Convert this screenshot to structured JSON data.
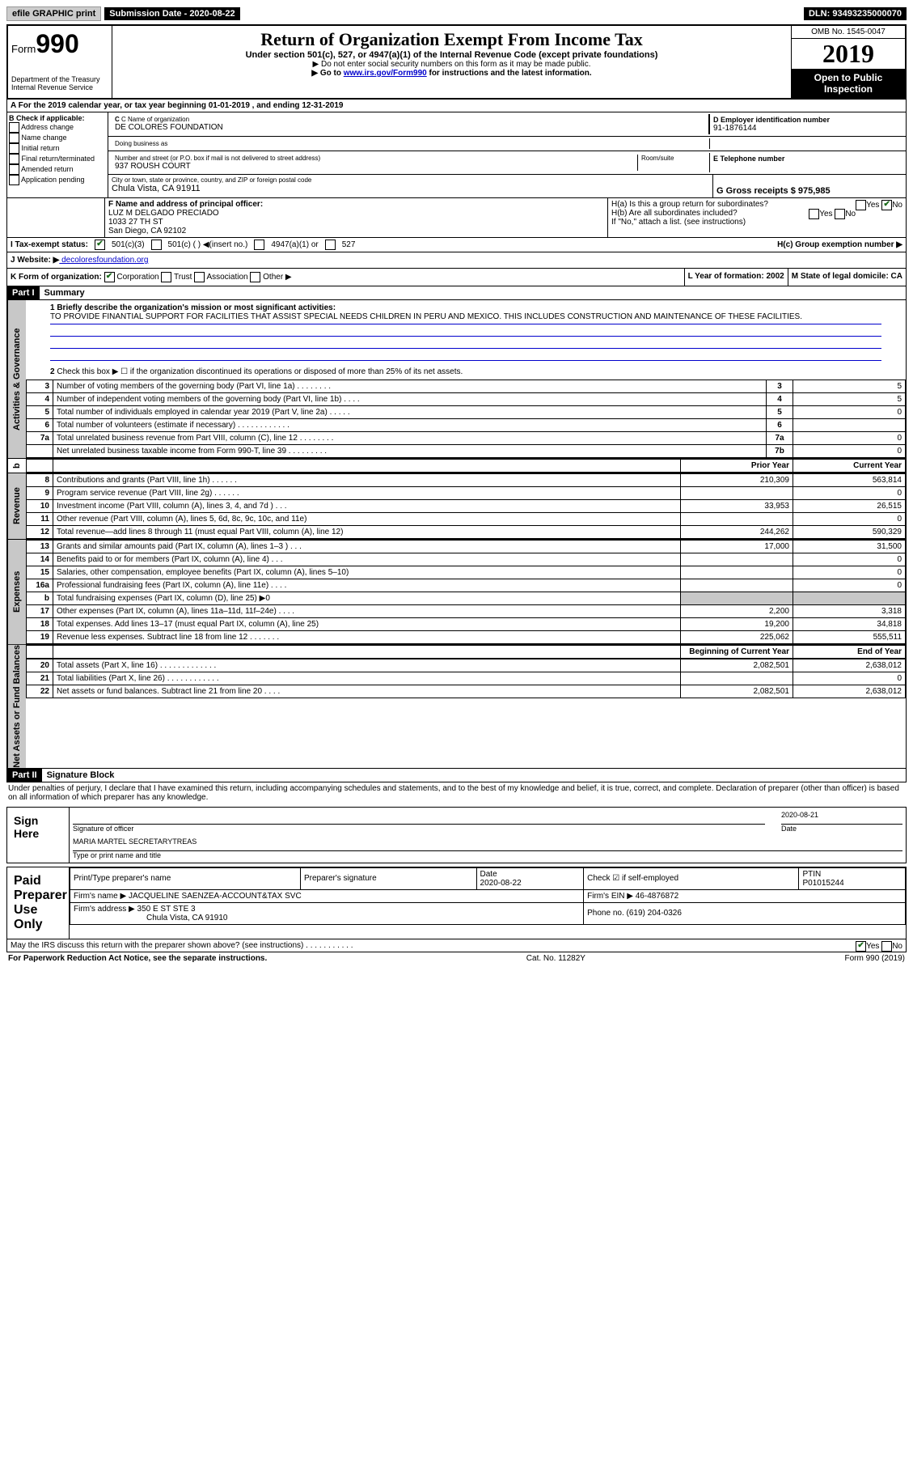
{
  "topbar": {
    "efile": "efile GRAPHIC print",
    "sub_label": "Submission Date - 2020-08-22",
    "dln": "DLN: 93493235000070"
  },
  "header": {
    "form_word": "Form",
    "form_num": "990",
    "dept": "Department of the Treasury\nInternal Revenue Service",
    "title": "Return of Organization Exempt From Income Tax",
    "sub": "Under section 501(c), 527, or 4947(a)(1) of the Internal Revenue Code (except private foundations)",
    "note1": "▶ Do not enter social security numbers on this form as it may be made public.",
    "note2_pre": "▶ Go to ",
    "note2_link": "www.irs.gov/Form990",
    "note2_post": " for instructions and the latest information.",
    "omb": "OMB No. 1545-0047",
    "year": "2019",
    "open": "Open to Public Inspection"
  },
  "row_a": "A For the 2019 calendar year, or tax year beginning 01-01-2019   , and ending 12-31-2019",
  "b": {
    "title": "B Check if applicable:",
    "opts": [
      "Address change",
      "Name change",
      "Initial return",
      "Final return/terminated",
      "Amended return",
      "Application pending"
    ]
  },
  "c": {
    "name_label": "C Name of organization",
    "name": "DE COLORES FOUNDATION",
    "dba": "Doing business as",
    "addr_label": "Number and street (or P.O. box if mail is not delivered to street address)",
    "room": "Room/suite",
    "addr": "937 ROUSH COURT",
    "city_label": "City or town, state or province, country, and ZIP or foreign postal code",
    "city": "Chula Vista, CA  91911"
  },
  "d": {
    "label": "D Employer identification number",
    "val": "91-1876144"
  },
  "e": {
    "label": "E Telephone number"
  },
  "g": {
    "label": "G Gross receipts $ 975,985"
  },
  "f": {
    "label": "F  Name and address of principal officer:",
    "name": "LUZ M DELGADO PRECIADO",
    "addr": "1033 27 TH ST",
    "city": "San Diego, CA  92102"
  },
  "h": {
    "a": "H(a)  Is this a group return for subordinates?",
    "b": "H(b)  Are all subordinates included?",
    "b_note": "If \"No,\" attach a list. (see instructions)",
    "c": "H(c)  Group exemption number ▶"
  },
  "i": {
    "label": "I  Tax-exempt status:",
    "opts": [
      "501(c)(3)",
      "501(c) (  ) ◀(insert no.)",
      "4947(a)(1) or",
      "527"
    ]
  },
  "j": {
    "label": "J  Website: ▶",
    "val": " decoloresfoundation.org"
  },
  "k": {
    "label": "K Form of organization:",
    "corp": "Corporation",
    "trust": "Trust",
    "assoc": "Association",
    "other": "Other ▶"
  },
  "l": {
    "label": "L Year of formation: 2002"
  },
  "m": {
    "label": "M State of legal domicile: CA"
  },
  "part1": {
    "hdr": "Part I",
    "title": "Summary",
    "q1": "1  Briefly describe the organization's mission or most significant activities:",
    "mission": "TO PROVIDE FINANTIAL SUPPORT FOR FACILITIES THAT ASSIST SPECIAL NEEDS CHILDREN IN PERU AND MEXICO. THIS INCLUDES CONSTRUCTION AND MAINTENANCE OF THESE FACILITIES.",
    "q2": "Check this box ▶ ☐  if the organization discontinued its operations or disposed of more than 25% of its net assets."
  },
  "sides": {
    "gov": "Activities & Governance",
    "rev": "Revenue",
    "exp": "Expenses",
    "net": "Net Assets or Fund Balances"
  },
  "gov_rows": [
    {
      "n": "3",
      "d": "Number of voting members of the governing body (Part VI, line 1a)  .   .   .   .   .   .   .   .",
      "b": "3",
      "v": "5"
    },
    {
      "n": "4",
      "d": "Number of independent voting members of the governing body (Part VI, line 1b)  .   .   .   .",
      "b": "4",
      "v": "5"
    },
    {
      "n": "5",
      "d": "Total number of individuals employed in calendar year 2019 (Part V, line 2a)  .   .   .   .   .",
      "b": "5",
      "v": "0"
    },
    {
      "n": "6",
      "d": "Total number of volunteers (estimate if necessary)   .    .    .    .    .    .    .    .    .    .    .    .",
      "b": "6",
      "v": ""
    },
    {
      "n": "7a",
      "d": "Total unrelated business revenue from Part VIII, column (C), line 12  .   .   .   .   .   .   .   .",
      "b": "7a",
      "v": "0"
    },
    {
      "n": "",
      "d": "Net unrelated business taxable income from Form 990-T, line 39   .   .   .   .   .   .   .   .   .",
      "b": "7b",
      "v": "0"
    }
  ],
  "col_hdrs": {
    "prior": "Prior Year",
    "current": "Current Year"
  },
  "rev_rows": [
    {
      "n": "8",
      "d": "Contributions and grants (Part VIII, line 1h)   .    .    .    .    .    .",
      "p": "210,309",
      "c": "563,814"
    },
    {
      "n": "9",
      "d": "Program service revenue (Part VIII, line 2g)   .    .    .    .    .    .",
      "p": "",
      "c": "0"
    },
    {
      "n": "10",
      "d": "Investment income (Part VIII, column (A), lines 3, 4, and 7d )   .    .    .",
      "p": "33,953",
      "c": "26,515"
    },
    {
      "n": "11",
      "d": "Other revenue (Part VIII, column (A), lines 5, 6d, 8c, 9c, 10c, and 11e)",
      "p": "",
      "c": "0"
    },
    {
      "n": "12",
      "d": "Total revenue—add lines 8 through 11 (must equal Part VIII, column (A), line 12)",
      "p": "244,262",
      "c": "590,329"
    }
  ],
  "exp_rows": [
    {
      "n": "13",
      "d": "Grants and similar amounts paid (Part IX, column (A), lines 1–3 )  .   .   .",
      "p": "17,000",
      "c": "31,500"
    },
    {
      "n": "14",
      "d": "Benefits paid to or for members (Part IX, column (A), line 4)  .   .   .",
      "p": "",
      "c": "0"
    },
    {
      "n": "15",
      "d": "Salaries, other compensation, employee benefits (Part IX, column (A), lines 5–10)",
      "p": "",
      "c": "0"
    },
    {
      "n": "16a",
      "d": "Professional fundraising fees (Part IX, column (A), line 11e)  .   .   .   .",
      "p": "",
      "c": "0"
    },
    {
      "n": "b",
      "d": "Total fundraising expenses (Part IX, column (D), line 25) ▶0",
      "p": "shade",
      "c": "shade"
    },
    {
      "n": "17",
      "d": "Other expenses (Part IX, column (A), lines 11a–11d, 11f–24e)  .   .   .   .",
      "p": "2,200",
      "c": "3,318"
    },
    {
      "n": "18",
      "d": "Total expenses. Add lines 13–17 (must equal Part IX, column (A), line 25)",
      "p": "19,200",
      "c": "34,818"
    },
    {
      "n": "19",
      "d": "Revenue less expenses. Subtract line 18 from line 12  .   .   .   .   .   .   .",
      "p": "225,062",
      "c": "555,511"
    }
  ],
  "net_hdrs": {
    "beg": "Beginning of Current Year",
    "end": "End of Year"
  },
  "net_rows": [
    {
      "n": "20",
      "d": "Total assets (Part X, line 16)  .   .   .   .   .   .   .   .   .   .   .   .   .",
      "p": "2,082,501",
      "c": "2,638,012"
    },
    {
      "n": "21",
      "d": "Total liabilities (Part X, line 26)  .   .   .   .   .   .   .   .   .   .   .   .",
      "p": "",
      "c": "0"
    },
    {
      "n": "22",
      "d": "Net assets or fund balances. Subtract line 21 from line 20   .    .    .    .",
      "p": "2,082,501",
      "c": "2,638,012"
    }
  ],
  "part2": {
    "hdr": "Part II",
    "title": "Signature Block"
  },
  "sig": {
    "decl": "Under penalties of perjury, I declare that I have examined this return, including accompanying schedules and statements, and to the best of my knowledge and belief, it is true, correct, and complete. Declaration of preparer (other than officer) is based on all information of which preparer has any knowledge.",
    "sign_here": "Sign Here",
    "sig_officer": "Signature of officer",
    "date": "2020-08-21",
    "date_lbl": "Date",
    "name": "MARIA MARTEL SECRETARYTREAS",
    "name_lbl": "Type or print name and title"
  },
  "prep": {
    "title": "Paid Preparer Use Only",
    "h1": "Print/Type preparer's name",
    "h2": "Preparer's signature",
    "h3": "Date",
    "date": "2020-08-22",
    "check": "Check ☑ if self-employed",
    "ptin_lbl": "PTIN",
    "ptin": "P01015244",
    "firm_lbl": "Firm's name    ▶",
    "firm": "JACQUELINE SAENZEA-ACCOUNT&TAX SVC",
    "ein_lbl": "Firm's EIN ▶",
    "ein": "46-4876872",
    "addr_lbl": "Firm's address ▶",
    "addr1": "350 E ST STE 3",
    "addr2": "Chula Vista, CA  91910",
    "phone_lbl": "Phone no.",
    "phone": "(619) 204-0326"
  },
  "irs_discuss": "May the IRS discuss this return with the preparer shown above? (see instructions)   .    .    .    .    .    .    .    .    .    .    .",
  "footer": {
    "l": "For Paperwork Reduction Act Notice, see the separate instructions.",
    "m": "Cat. No. 11282Y",
    "r": "Form 990 (2019)"
  }
}
